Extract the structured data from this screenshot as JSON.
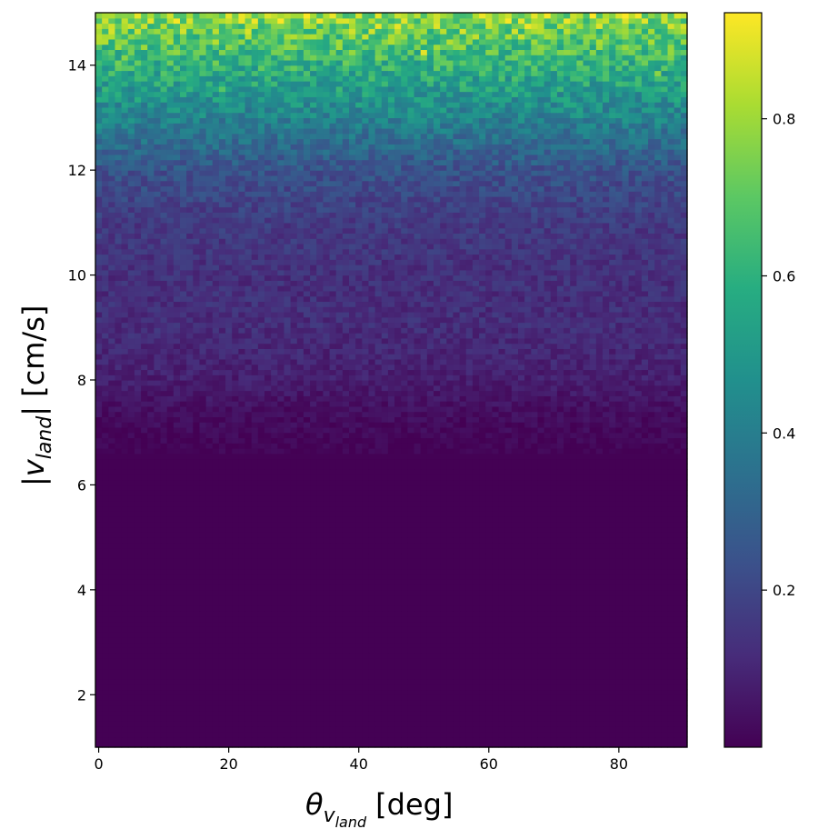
{
  "chart_data": {
    "type": "heatmap",
    "colormap": "viridis",
    "xlabel": {
      "symbol": "θ",
      "subscript": "v",
      "subsubscript": "land",
      "unit": "[deg]"
    },
    "ylabel": {
      "prefix": "|v",
      "subscript": "land",
      "suffix": "| [cm/s]"
    },
    "xlim": [
      -0.5,
      90.5
    ],
    "ylim": [
      1,
      15
    ],
    "x_ticks": [
      0,
      20,
      40,
      60,
      80
    ],
    "y_ticks": [
      2,
      4,
      6,
      8,
      10,
      12,
      14
    ],
    "x_tick_labels": [
      "0",
      "20",
      "40",
      "60",
      "80"
    ],
    "y_tick_labels": [
      "2",
      "4",
      "6",
      "8",
      "10",
      "12",
      "14"
    ],
    "grid": {
      "nx": 91,
      "ny": 140
    },
    "colorbar": {
      "range": [
        0.0,
        0.935
      ],
      "ticks": [
        0.2,
        0.4,
        0.6,
        0.8
      ],
      "tick_labels": [
        "0.2",
        "0.4",
        "0.6",
        "0.8"
      ]
    },
    "profile_vs_speed": [
      {
        "speed": 1.0,
        "value": 0.0
      },
      {
        "speed": 6.4,
        "value": 0.0
      },
      {
        "speed": 6.8,
        "value": 0.01
      },
      {
        "speed": 7.5,
        "value": 0.04
      },
      {
        "speed": 8.0,
        "value": 0.08
      },
      {
        "speed": 9.0,
        "value": 0.12
      },
      {
        "speed": 10.0,
        "value": 0.13
      },
      {
        "speed": 11.0,
        "value": 0.16
      },
      {
        "speed": 12.0,
        "value": 0.24
      },
      {
        "speed": 13.0,
        "value": 0.42
      },
      {
        "speed": 14.0,
        "value": 0.6
      },
      {
        "speed": 15.0,
        "value": 0.8
      }
    ]
  }
}
